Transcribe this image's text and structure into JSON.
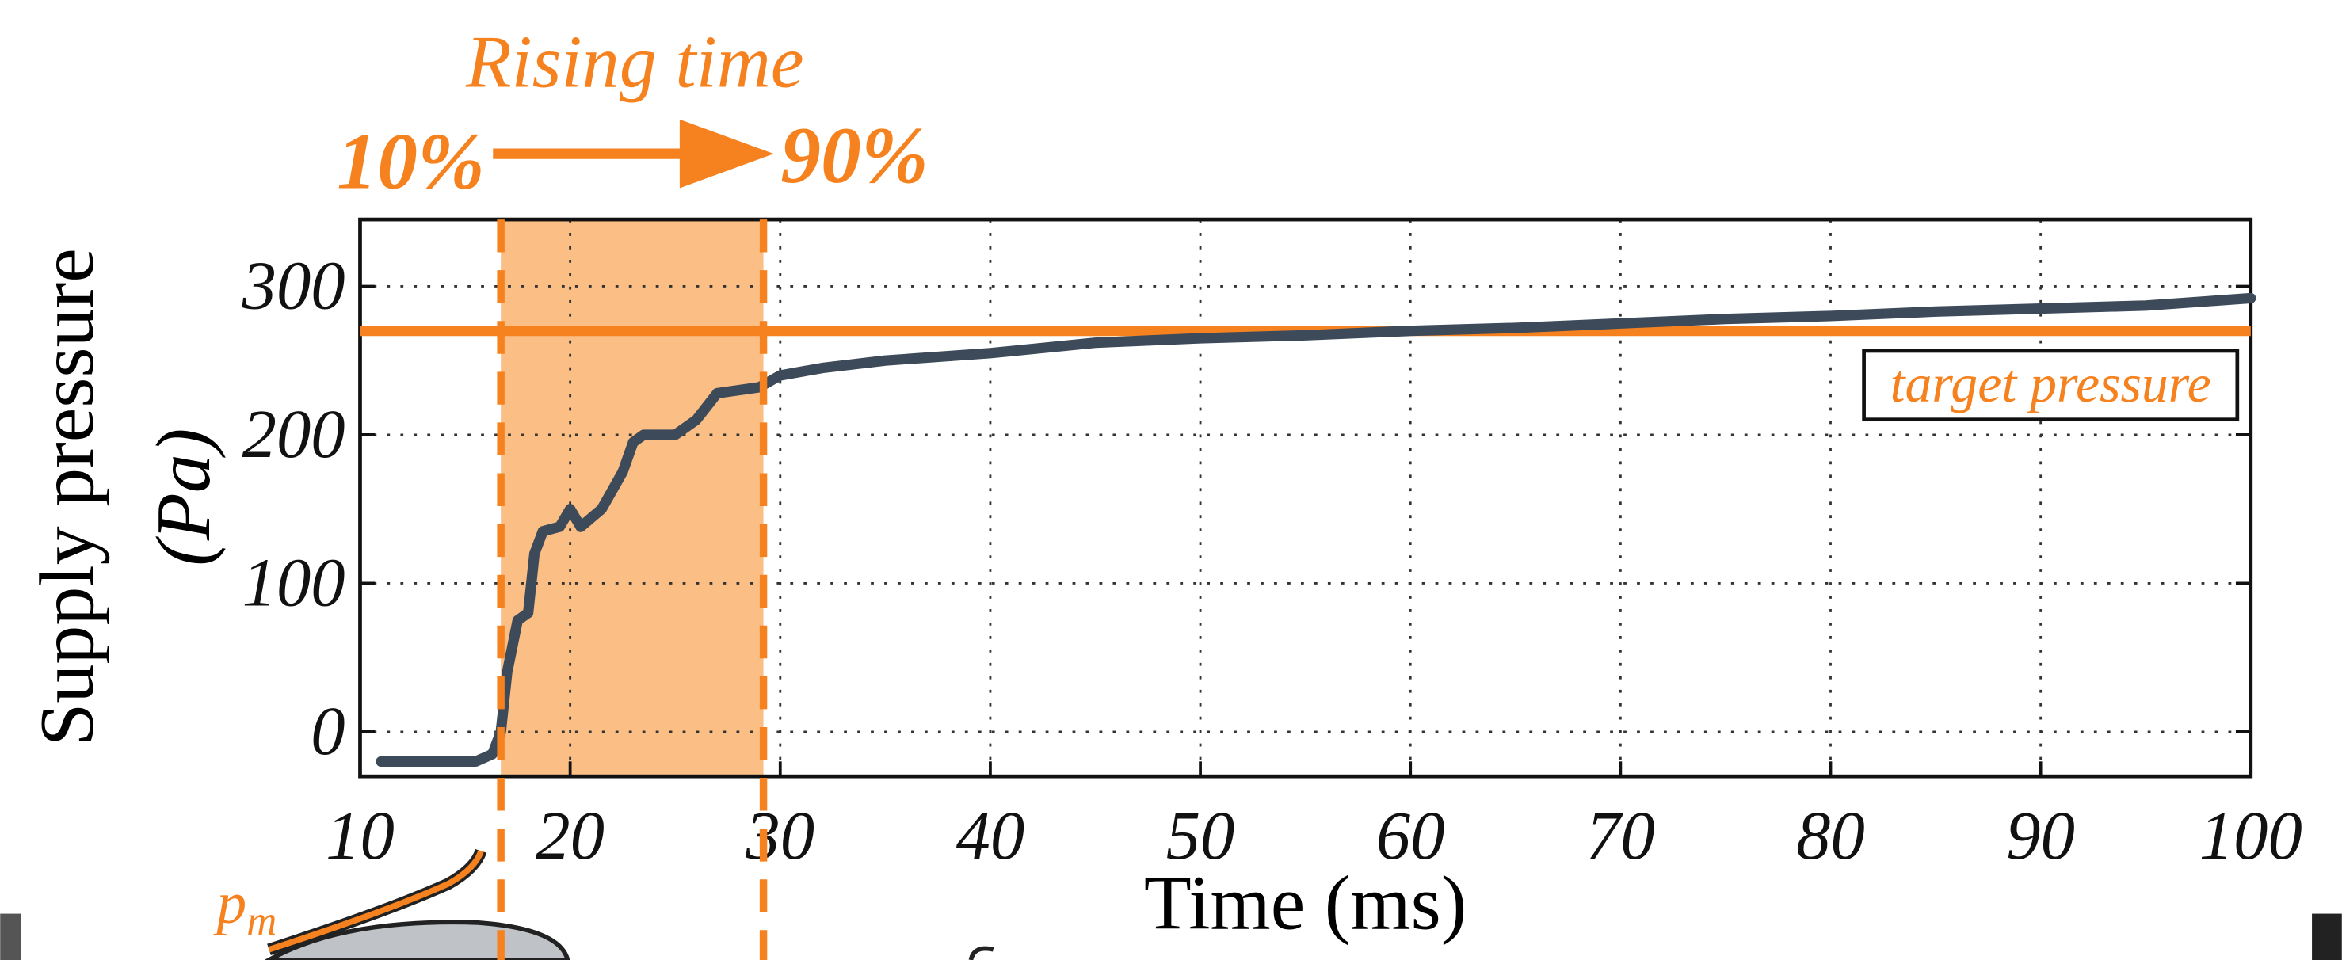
{
  "chart_data": {
    "type": "line",
    "xlabel": "Time (ms)",
    "ylabel": [
      "Supply pressure",
      "(Pa)"
    ],
    "xlim": [
      10,
      100
    ],
    "ylim": [
      -30,
      345
    ],
    "xticks": [
      10,
      20,
      30,
      40,
      50,
      60,
      70,
      80,
      90,
      100
    ],
    "yticks": [
      0,
      100,
      200,
      300
    ],
    "grid": true,
    "x": [
      11,
      15.5,
      16.3,
      16.7,
      17,
      17.5,
      18,
      18.3,
      18.7,
      19.5,
      20,
      20.5,
      21.5,
      22.5,
      23,
      23.5,
      25,
      26,
      27,
      28,
      29,
      30,
      32,
      35,
      40,
      45,
      50,
      55,
      60,
      65,
      70,
      75,
      80,
      85,
      90,
      95,
      100
    ],
    "series": [
      {
        "name": "Supply pressure",
        "color": "#3d4a5a",
        "values": [
          -20,
          -20,
          -15,
          0,
          40,
          75,
          80,
          120,
          135,
          138,
          150,
          138,
          150,
          175,
          195,
          200,
          200,
          210,
          228,
          230,
          232,
          240,
          245,
          250,
          255,
          262,
          265,
          267,
          270,
          272,
          275,
          278,
          280,
          283,
          285,
          287,
          292
        ]
      }
    ],
    "target": {
      "label": "target pressure",
      "value": 270,
      "color": "#f5821f"
    },
    "rising_span": {
      "values": [
        16.7,
        29.2
      ],
      "color": "#fbbf85"
    },
    "annotations": {
      "title": "Rising time",
      "start": "10%",
      "end": "90%",
      "pm": "p",
      "pm_sub": "m"
    }
  }
}
